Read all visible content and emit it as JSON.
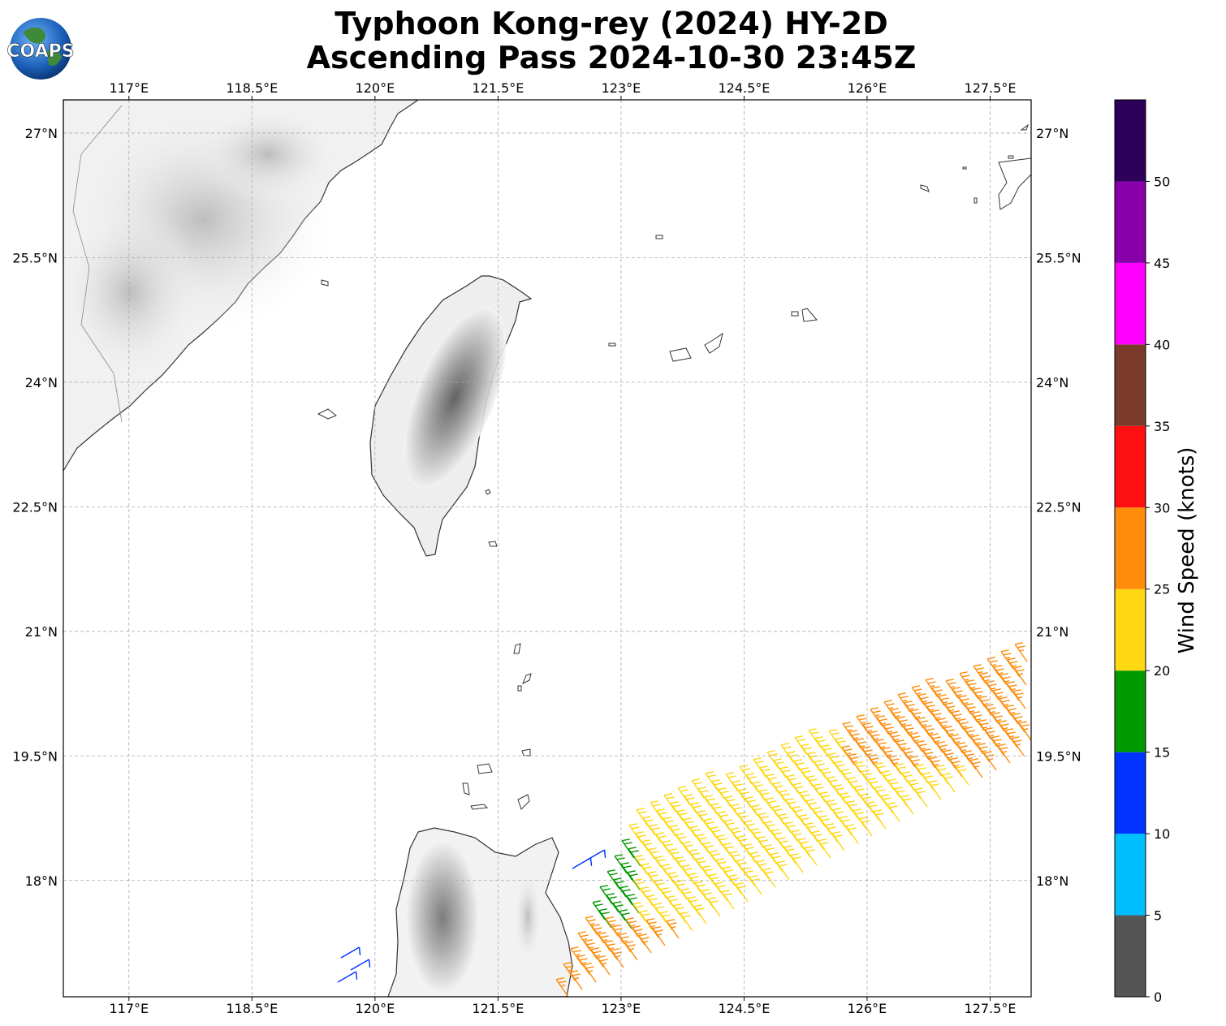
{
  "title": {
    "line1": "Typhoon Kong-rey (2024) HY-2D",
    "line2": "Ascending Pass 2024-10-30 23:45Z"
  },
  "logo": {
    "text": "COAPS",
    "icon": "globe-icon"
  },
  "map": {
    "lon_range": [
      116.2,
      128.0
    ],
    "lat_range": [
      16.6,
      27.4
    ],
    "lon_ticks": [
      "117°E",
      "118.5°E",
      "120°E",
      "121.5°E",
      "123°E",
      "124.5°E",
      "126°E",
      "127.5°E"
    ],
    "lat_ticks": [
      "27°N",
      "25.5°N",
      "24°N",
      "22.5°N",
      "21°N",
      "19.5°N",
      "18°N"
    ],
    "gridlines": true,
    "features": [
      "Taiwan",
      "Luzon",
      "Fujian coast",
      "Batanes Islands",
      "Yaeyama Islands"
    ]
  },
  "colorbar": {
    "label": "Wind Speed (knots)",
    "ticks": [
      "0",
      "5",
      "10",
      "15",
      "20",
      "25",
      "30",
      "35",
      "40",
      "45",
      "50"
    ],
    "bins": [
      {
        "min": 0,
        "max": 5,
        "color": "#555555"
      },
      {
        "min": 5,
        "max": 10,
        "color": "#00bfff"
      },
      {
        "min": 10,
        "max": 15,
        "color": "#0033ff"
      },
      {
        "min": 15,
        "max": 20,
        "color": "#009900"
      },
      {
        "min": 20,
        "max": 25,
        "color": "#ffd814"
      },
      {
        "min": 25,
        "max": 30,
        "color": "#ff8c0a"
      },
      {
        "min": 30,
        "max": 35,
        "color": "#ff1010"
      },
      {
        "min": 35,
        "max": 40,
        "color": "#7b3b2b"
      },
      {
        "min": 40,
        "max": 45,
        "color": "#ff00ff"
      },
      {
        "min": 45,
        "max": 50,
        "color": "#8800aa"
      },
      {
        "min": 50,
        "max": 55,
        "color": "#2d005a"
      }
    ]
  }
}
